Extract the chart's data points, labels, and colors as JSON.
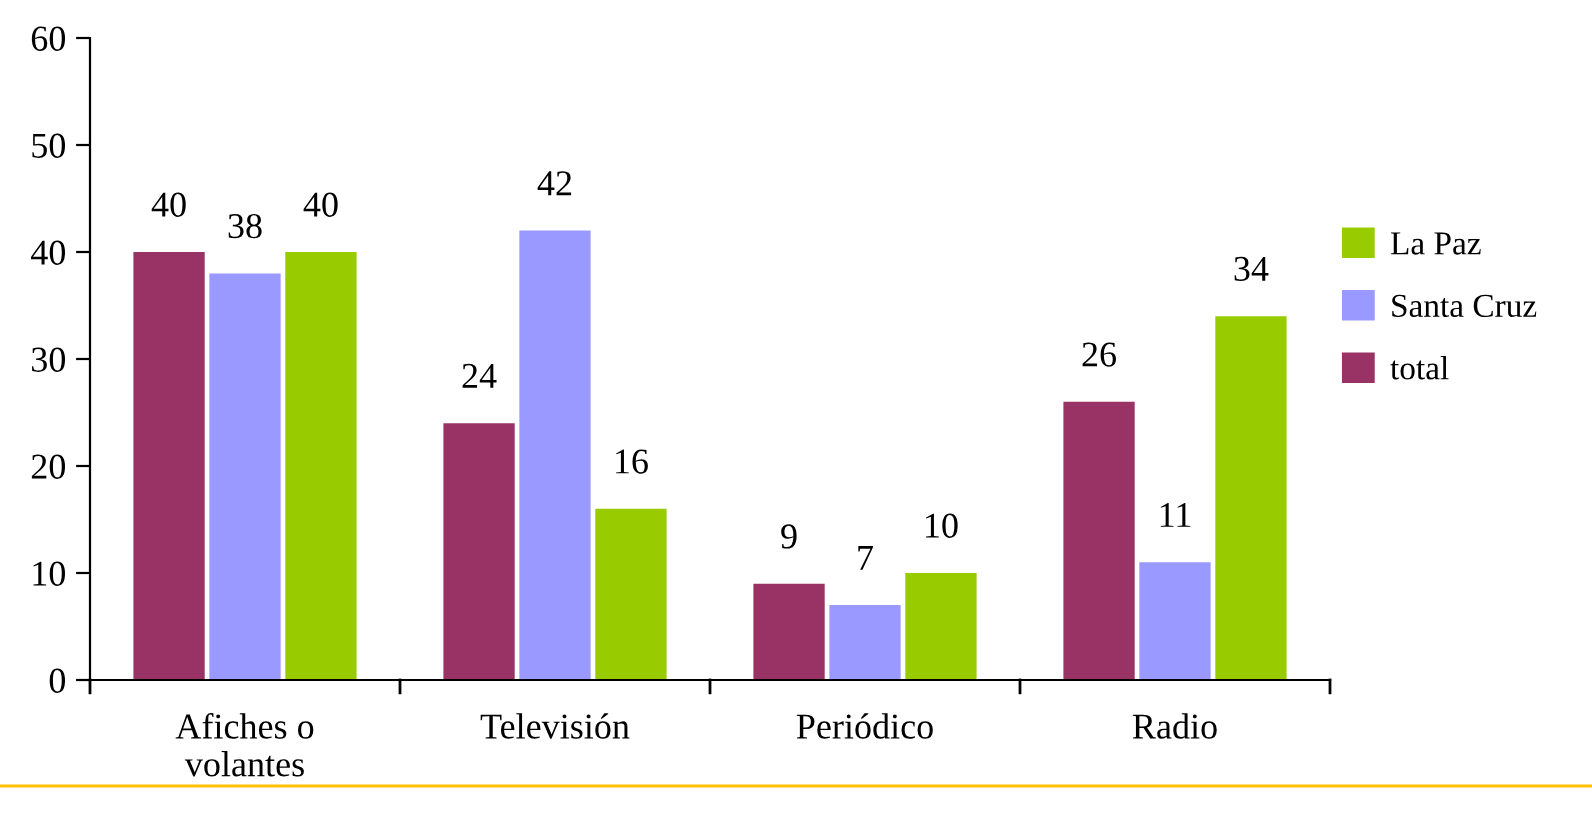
{
  "chart_data": {
    "type": "bar",
    "categories": [
      "Afiches o\nvolantes",
      "Televisión",
      "Periódico",
      "Radio"
    ],
    "series": [
      {
        "name": "total",
        "color": "#993366",
        "values": [
          40,
          24,
          9,
          26
        ]
      },
      {
        "name": "Santa Cruz",
        "color": "#9999ff",
        "values": [
          38,
          42,
          7,
          11
        ]
      },
      {
        "name": "La Paz",
        "color": "#99cc00",
        "values": [
          40,
          16,
          10,
          34
        ]
      }
    ],
    "ylim": [
      0,
      60
    ],
    "yticks": [
      0,
      10,
      20,
      30,
      40,
      50,
      60
    ],
    "data_labels": true,
    "grid": false,
    "legend": "right"
  }
}
